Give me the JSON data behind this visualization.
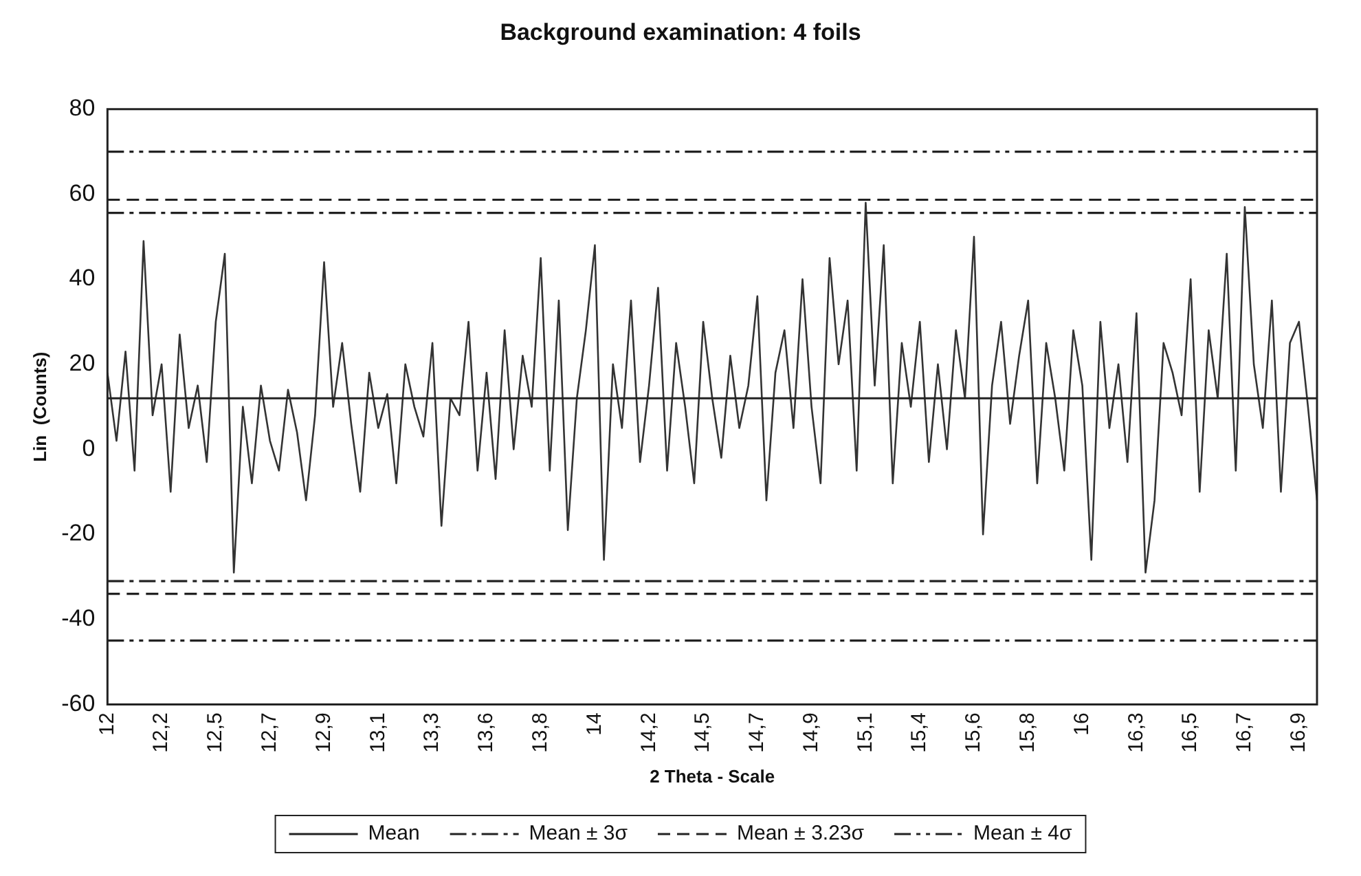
{
  "chart_data": {
    "type": "line",
    "title": "Background examination: 4 foils",
    "xlabel": "2 Theta - Scale",
    "ylabel": "Lin  (Counts)",
    "categories": [
      "12",
      null,
      null,
      null,
      null,
      null,
      "12,2",
      null,
      null,
      null,
      null,
      null,
      "12,5",
      null,
      null,
      null,
      null,
      null,
      "12,7",
      null,
      null,
      null,
      null,
      null,
      "12,9",
      null,
      null,
      null,
      null,
      null,
      "13,1",
      null,
      null,
      null,
      null,
      null,
      "13,3",
      null,
      null,
      null,
      null,
      null,
      "13,6",
      null,
      null,
      null,
      null,
      null,
      "13,8",
      null,
      null,
      null,
      null,
      null,
      "14",
      null,
      null,
      null,
      null,
      null,
      "14,2",
      null,
      null,
      null,
      null,
      null,
      "14,5",
      null,
      null,
      null,
      null,
      null,
      "14,7",
      null,
      null,
      null,
      null,
      null,
      "14,9",
      null,
      null,
      null,
      null,
      null,
      "15,1",
      null,
      null,
      null,
      null,
      null,
      "15,4",
      null,
      null,
      null,
      null,
      null,
      "15,6",
      null,
      null,
      null,
      null,
      null,
      "15,8",
      null,
      null,
      null,
      null,
      null,
      "16",
      null,
      null,
      null,
      null,
      null,
      "16,3",
      null,
      null,
      null,
      null,
      null,
      "16,5",
      null,
      null,
      null,
      null,
      null,
      "16,7",
      null,
      null,
      null,
      null,
      null,
      "16,9",
      null,
      null
    ],
    "series": [
      {
        "color": "#333333",
        "values": [
          18,
          2,
          23,
          -5,
          49,
          8,
          20,
          -10,
          27,
          5,
          15,
          -3,
          30,
          46,
          -29,
          10,
          -8,
          15,
          2,
          -5,
          14,
          4,
          -12,
          8,
          44,
          10,
          25,
          6,
          -10,
          18,
          5,
          13,
          -8,
          20,
          10,
          3,
          25,
          -18,
          12,
          8,
          30,
          -5,
          18,
          -7,
          28,
          0,
          22,
          10,
          45,
          -5,
          35,
          -19,
          12,
          28,
          48,
          -26,
          20,
          5,
          35,
          -3,
          15,
          38,
          -5,
          25,
          10,
          -8,
          30,
          12,
          -2,
          22,
          5,
          15,
          36,
          -12,
          18,
          28,
          5,
          40,
          10,
          -8,
          45,
          20,
          35,
          -5,
          58,
          15,
          48,
          -8,
          25,
          10,
          30,
          -3,
          20,
          0,
          28,
          12,
          50,
          -20,
          15,
          30,
          6,
          22,
          35,
          -8,
          25,
          12,
          -5,
          28,
          15,
          -26,
          30,
          5,
          20,
          -3,
          32,
          -29,
          -12,
          25,
          18,
          8,
          40,
          -10,
          28,
          12,
          46,
          -5,
          57,
          20,
          5,
          35,
          -10,
          25,
          30,
          10,
          -12
        ]
      }
    ],
    "ylim": [
      -60,
      80
    ],
    "yticks": [
      -60,
      -40,
      -20,
      0,
      20,
      40,
      60,
      80
    ],
    "grid": false,
    "legend": "bottom",
    "marker": "none",
    "ref_lines": [
      {
        "axis": "y",
        "value": 12,
        "label": "Mean",
        "color": "#222222",
        "line_style": "solid"
      },
      {
        "axis": "y",
        "value": 55.6,
        "label": "Mean ± 3σ",
        "color": "#222222",
        "line_style": "dashdot"
      },
      {
        "axis": "y",
        "value": -31,
        "color": "#222222",
        "line_style": "dashdot"
      },
      {
        "axis": "y",
        "value": 58.7,
        "label": "Mean ± 3.23σ",
        "color": "#222222",
        "line_style": "dashed"
      },
      {
        "axis": "y",
        "value": -34,
        "color": "#222222",
        "line_style": "dashed"
      },
      {
        "axis": "y",
        "value": 70,
        "label": "Mean ± 4σ",
        "color": "#222222",
        "line_style": "dashdotdot"
      },
      {
        "axis": "y",
        "value": -45,
        "color": "#222222",
        "line_style": "dashdotdot"
      }
    ]
  }
}
